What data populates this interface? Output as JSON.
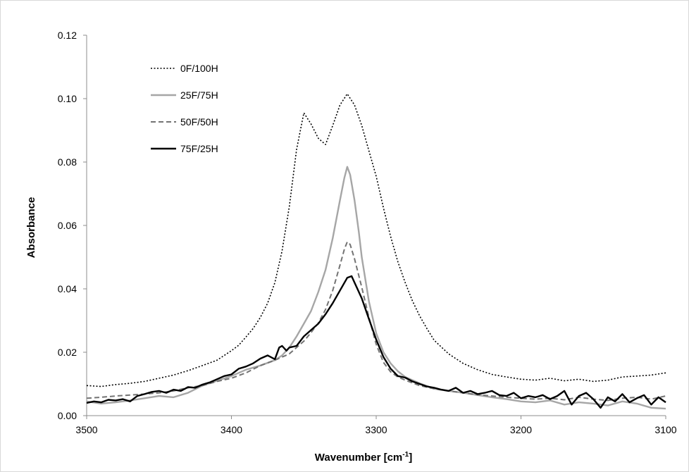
{
  "chart_data": {
    "type": "line",
    "title": "",
    "xlabel": "Wavenumber [cm",
    "xlabel_sup": "-1",
    "xlabel_suffix": "]",
    "ylabel": "Absorbance",
    "xlim": [
      3500,
      3100
    ],
    "x_reversed": true,
    "ylim": [
      0,
      0.12
    ],
    "x_ticks": [
      3500,
      3400,
      3300,
      3200,
      3100
    ],
    "x_tick_labels": [
      "3500",
      "3400",
      "3300",
      "3200",
      "3100"
    ],
    "y_ticks": [
      0,
      0.02,
      0.04,
      0.06,
      0.08,
      0.1,
      0.12
    ],
    "y_tick_labels": [
      "0.00",
      "0.02",
      "0.04",
      "0.06",
      "0.08",
      "0.10",
      "0.12"
    ],
    "grid": false,
    "legend_position": "top-left",
    "series": [
      {
        "name": "0F/100H",
        "color": "#000000",
        "dash": "2,2.5",
        "width": 1.6,
        "x": [
          3500,
          3490,
          3480,
          3470,
          3460,
          3450,
          3440,
          3430,
          3420,
          3410,
          3400,
          3395,
          3390,
          3385,
          3380,
          3375,
          3370,
          3365,
          3360,
          3355,
          3350,
          3345,
          3340,
          3335,
          3330,
          3325,
          3320,
          3315,
          3310,
          3305,
          3300,
          3295,
          3290,
          3285,
          3280,
          3275,
          3270,
          3265,
          3260,
          3250,
          3240,
          3230,
          3220,
          3210,
          3200,
          3190,
          3180,
          3170,
          3160,
          3150,
          3140,
          3130,
          3120,
          3110,
          3100
        ],
        "y": [
          0.0095,
          0.0092,
          0.0098,
          0.0102,
          0.0108,
          0.0118,
          0.0128,
          0.0142,
          0.0158,
          0.0175,
          0.0205,
          0.0222,
          0.0248,
          0.0275,
          0.031,
          0.0355,
          0.042,
          0.052,
          0.066,
          0.084,
          0.0955,
          0.092,
          0.0875,
          0.0855,
          0.0915,
          0.098,
          0.1015,
          0.098,
          0.0915,
          0.0835,
          0.0755,
          0.0655,
          0.0565,
          0.0485,
          0.042,
          0.0362,
          0.0315,
          0.0275,
          0.0238,
          0.0195,
          0.0165,
          0.0145,
          0.013,
          0.0122,
          0.0115,
          0.0112,
          0.0118,
          0.011,
          0.0115,
          0.0108,
          0.0112,
          0.0122,
          0.0125,
          0.0128,
          0.0135
        ]
      },
      {
        "name": "25F/75H",
        "color": "#a6a6a6",
        "dash": "",
        "width": 2.4,
        "x": [
          3500,
          3490,
          3480,
          3470,
          3460,
          3450,
          3440,
          3430,
          3420,
          3410,
          3400,
          3390,
          3380,
          3370,
          3365,
          3360,
          3355,
          3350,
          3345,
          3340,
          3335,
          3330,
          3325,
          3322,
          3320,
          3318,
          3315,
          3312,
          3310,
          3305,
          3300,
          3295,
          3290,
          3285,
          3280,
          3270,
          3260,
          3250,
          3240,
          3230,
          3220,
          3210,
          3200,
          3190,
          3180,
          3170,
          3160,
          3150,
          3140,
          3130,
          3120,
          3110,
          3100
        ],
        "y": [
          0.0045,
          0.0038,
          0.0042,
          0.0048,
          0.0055,
          0.0062,
          0.0058,
          0.0072,
          0.0095,
          0.011,
          0.0125,
          0.0145,
          0.0158,
          0.0175,
          0.019,
          0.0215,
          0.025,
          0.029,
          0.033,
          0.039,
          0.046,
          0.056,
          0.068,
          0.075,
          0.0785,
          0.076,
          0.068,
          0.058,
          0.05,
          0.036,
          0.026,
          0.02,
          0.0165,
          0.014,
          0.0122,
          0.0102,
          0.0085,
          0.0078,
          0.0072,
          0.0065,
          0.0058,
          0.0052,
          0.0045,
          0.0042,
          0.0048,
          0.0035,
          0.0042,
          0.0038,
          0.0032,
          0.0045,
          0.0038,
          0.0025,
          0.0022
        ]
      },
      {
        "name": "50F/50H",
        "color": "#737373",
        "dash": "7,4",
        "width": 2.0,
        "x": [
          3500,
          3490,
          3480,
          3470,
          3460,
          3450,
          3440,
          3430,
          3420,
          3410,
          3400,
          3390,
          3380,
          3370,
          3360,
          3350,
          3345,
          3340,
          3335,
          3330,
          3325,
          3322,
          3320,
          3318,
          3315,
          3310,
          3305,
          3300,
          3295,
          3290,
          3285,
          3280,
          3270,
          3260,
          3250,
          3240,
          3230,
          3220,
          3210,
          3200,
          3190,
          3180,
          3170,
          3160,
          3150,
          3140,
          3130,
          3120,
          3110,
          3100
        ],
        "y": [
          0.0055,
          0.0058,
          0.0062,
          0.0065,
          0.0068,
          0.0072,
          0.0078,
          0.0088,
          0.0095,
          0.0108,
          0.0118,
          0.0135,
          0.0158,
          0.0175,
          0.0195,
          0.0235,
          0.0262,
          0.0292,
          0.0335,
          0.0395,
          0.0475,
          0.0525,
          0.0548,
          0.054,
          0.0495,
          0.0405,
          0.031,
          0.0225,
          0.0168,
          0.0138,
          0.0122,
          0.0112,
          0.0095,
          0.0085,
          0.0078,
          0.0072,
          0.0066,
          0.0062,
          0.0058,
          0.0055,
          0.0052,
          0.0055,
          0.005,
          0.0058,
          0.0052,
          0.0048,
          0.0055,
          0.0058,
          0.0052,
          0.0062
        ]
      },
      {
        "name": "75F/25H",
        "color": "#000000",
        "dash": "",
        "width": 2.4,
        "x": [
          3500,
          3495,
          3490,
          3485,
          3480,
          3475,
          3470,
          3465,
          3460,
          3455,
          3450,
          3445,
          3440,
          3435,
          3430,
          3425,
          3420,
          3415,
          3410,
          3405,
          3400,
          3395,
          3390,
          3385,
          3380,
          3375,
          3370,
          3367,
          3365,
          3362,
          3360,
          3355,
          3350,
          3345,
          3340,
          3335,
          3330,
          3325,
          3320,
          3317,
          3315,
          3310,
          3305,
          3300,
          3295,
          3290,
          3285,
          3280,
          3275,
          3270,
          3265,
          3260,
          3255,
          3250,
          3245,
          3240,
          3235,
          3230,
          3225,
          3220,
          3215,
          3210,
          3205,
          3200,
          3195,
          3190,
          3185,
          3180,
          3175,
          3170,
          3165,
          3160,
          3155,
          3150,
          3145,
          3140,
          3135,
          3130,
          3125,
          3120,
          3115,
          3110,
          3105,
          3100
        ],
        "y": [
          0.004,
          0.0045,
          0.0042,
          0.005,
          0.0048,
          0.0052,
          0.0045,
          0.0062,
          0.0068,
          0.0075,
          0.0078,
          0.0072,
          0.0082,
          0.0078,
          0.009,
          0.0088,
          0.0098,
          0.0105,
          0.0115,
          0.0125,
          0.013,
          0.0148,
          0.0155,
          0.0165,
          0.018,
          0.019,
          0.0178,
          0.0215,
          0.022,
          0.0205,
          0.0215,
          0.022,
          0.025,
          0.027,
          0.029,
          0.032,
          0.0355,
          0.0395,
          0.0435,
          0.044,
          0.042,
          0.037,
          0.0305,
          0.024,
          0.0185,
          0.0148,
          0.0125,
          0.012,
          0.0108,
          0.01,
          0.0092,
          0.0088,
          0.0082,
          0.0078,
          0.0088,
          0.0072,
          0.0078,
          0.0068,
          0.0072,
          0.0078,
          0.0065,
          0.0062,
          0.0072,
          0.0055,
          0.0062,
          0.0058,
          0.0065,
          0.0052,
          0.0062,
          0.0078,
          0.0035,
          0.0062,
          0.0072,
          0.0052,
          0.0025,
          0.0058,
          0.0045,
          0.0068,
          0.0042,
          0.0055,
          0.0065,
          0.0035,
          0.0058,
          0.0042
        ]
      }
    ]
  }
}
